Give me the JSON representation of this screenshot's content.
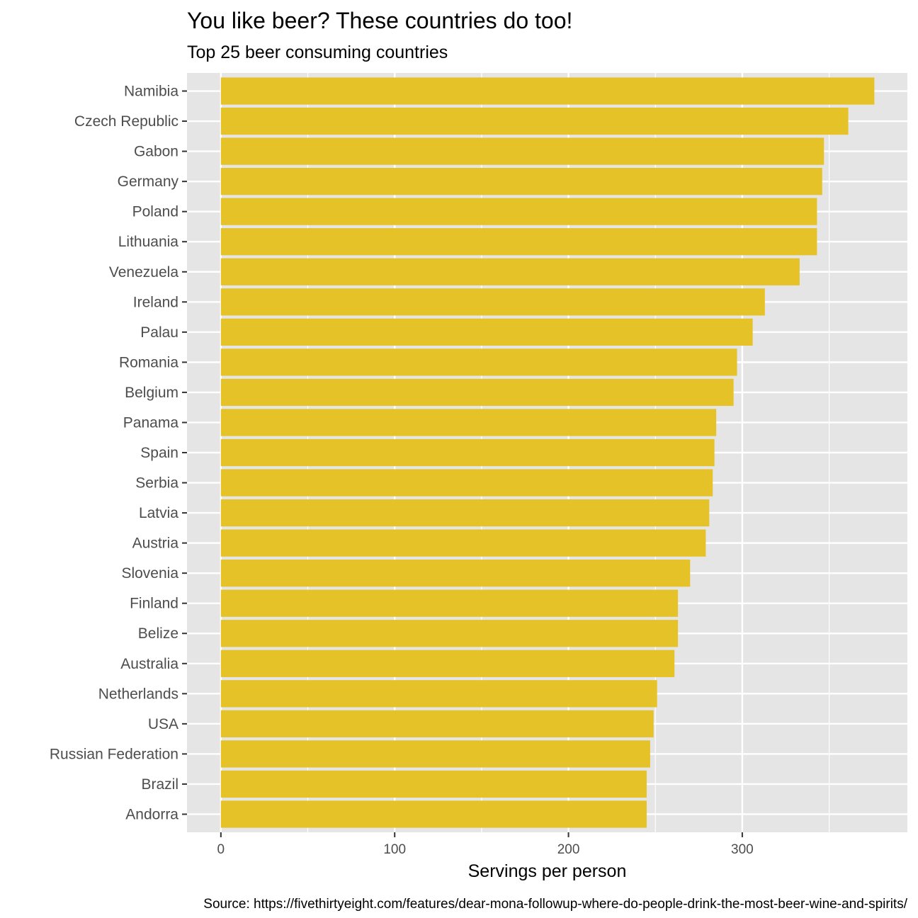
{
  "chart_data": {
    "type": "bar",
    "orientation": "horizontal",
    "title": "You like beer? These countries do too!",
    "subtitle": "Top 25 beer consuming countries",
    "xlabel": "Servings per person",
    "ylabel": "",
    "caption": "Source: https://fivethirtyeight.com/features/dear-mona-followup-where-do-people-drink-the-most-beer-wine-and-spirits/",
    "categories": [
      "Namibia",
      "Czech Republic",
      "Gabon",
      "Germany",
      "Poland",
      "Lithuania",
      "Venezuela",
      "Ireland",
      "Palau",
      "Romania",
      "Belgium",
      "Panama",
      "Spain",
      "Serbia",
      "Latvia",
      "Austria",
      "Slovenia",
      "Finland",
      "Belize",
      "Australia",
      "Netherlands",
      "USA",
      "Russian Federation",
      "Brazil",
      "Andorra"
    ],
    "values": [
      376,
      361,
      347,
      346,
      343,
      343,
      333,
      313,
      306,
      297,
      295,
      285,
      284,
      283,
      281,
      279,
      270,
      263,
      263,
      261,
      251,
      249,
      247,
      245,
      245
    ],
    "xlim": [
      -19.5,
      395
    ],
    "xticks": [
      0,
      100,
      200,
      300
    ],
    "tick_labels": [
      "0",
      "100",
      "200",
      "300"
    ],
    "grid": true,
    "colors": {
      "bar": "#E6C229",
      "panel": "#E5E5E5",
      "grid": "#FFFFFF",
      "text": "#4D4D4D"
    }
  }
}
